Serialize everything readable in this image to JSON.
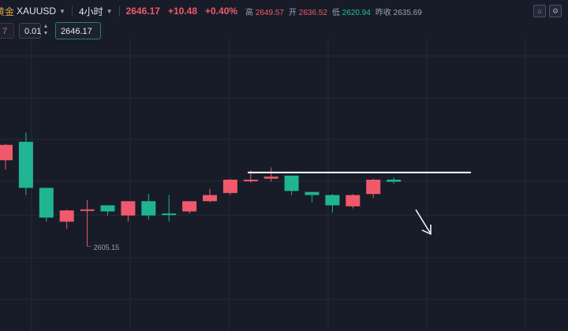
{
  "header": {
    "symbol_cn": "黄金",
    "symbol": "XAUUSD",
    "timeframe": "4小时",
    "last_price": "2646.17",
    "change": "+10.48",
    "change_pct": "+0.40%",
    "high_label": "高",
    "high_value": "2649.57",
    "open_label": "开",
    "open_value": "2636.52",
    "low_label": "低",
    "low_value": "2620.94",
    "prev_close_label": "昨收",
    "prev_close_value": "2635.69"
  },
  "trade_panel": {
    "left_value": "7",
    "quantity": "0.01",
    "order_price": "2646.17"
  },
  "toolbar_icons": [
    "chart-type-icon",
    "settings-icon"
  ],
  "chart_data": {
    "type": "candlestick",
    "low_annotation": "2605.15",
    "colors": {
      "up": "#f0596b",
      "down": "#1fb593",
      "background": "#171c28",
      "grid": "#232a38"
    },
    "candles": [
      {
        "open": 2623.5,
        "high": 2631.5,
        "low": 2619.0,
        "close": 2631.0
      },
      {
        "open": 2632.5,
        "high": 2637.0,
        "low": 2606.5,
        "close": 2610.0
      },
      {
        "open": 2610.0,
        "high": 2610.0,
        "low": 2593.5,
        "close": 2595.5
      },
      {
        "open": 2593.5,
        "high": 2599.5,
        "low": 2590.0,
        "close": 2599.0
      },
      {
        "open": 2599.0,
        "high": 2604.0,
        "low": 2581.5,
        "close": 2599.5
      },
      {
        "open": 2601.5,
        "high": 2601.5,
        "low": 2596.5,
        "close": 2598.5
      },
      {
        "open": 2596.5,
        "high": 2603.5,
        "low": 2593.5,
        "close": 2603.5
      },
      {
        "open": 2603.5,
        "high": 2607.0,
        "low": 2594.5,
        "close": 2596.5
      },
      {
        "open": 2597.5,
        "high": 2606.5,
        "low": 2593.5,
        "close": 2597.0
      },
      {
        "open": 2598.5,
        "high": 2603.5,
        "low": 2597.5,
        "close": 2603.5
      },
      {
        "open": 2603.5,
        "high": 2609.5,
        "low": 2603.0,
        "close": 2606.5
      },
      {
        "open": 2607.5,
        "high": 2614.5,
        "low": 2606.5,
        "close": 2614.0
      },
      {
        "open": 2613.5,
        "high": 2618.5,
        "low": 2612.5,
        "close": 2614.0
      },
      {
        "open": 2614.5,
        "high": 2620.0,
        "low": 2613.0,
        "close": 2615.5
      },
      {
        "open": 2616.0,
        "high": 2616.0,
        "low": 2606.5,
        "close": 2608.5
      },
      {
        "open": 2608.0,
        "high": 2608.0,
        "low": 2603.0,
        "close": 2606.5
      },
      {
        "open": 2606.5,
        "high": 2607.0,
        "low": 2598.0,
        "close": 2601.5
      },
      {
        "open": 2601.0,
        "high": 2607.0,
        "low": 2600.0,
        "close": 2606.5
      },
      {
        "open": 2607.0,
        "high": 2614.5,
        "low": 2605.0,
        "close": 2614.0
      },
      {
        "open": 2614.0,
        "high": 2615.0,
        "low": 2612.0,
        "close": 2613.0
      }
    ],
    "resistance_level": 2617.5,
    "projected_direction": "down"
  }
}
